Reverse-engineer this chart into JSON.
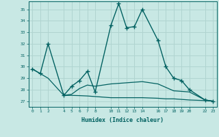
{
  "xlabel": "Humidex (Indice chaleur)",
  "ylabel": "",
  "background_color": "#c8e8e4",
  "grid_color": "#b0d4d0",
  "line_color": "#006060",
  "xlim": [
    -0.5,
    23.5
  ],
  "ylim": [
    26.5,
    35.7
  ],
  "xticks": [
    0,
    1,
    2,
    4,
    5,
    6,
    7,
    8,
    10,
    11,
    12,
    13,
    14,
    16,
    17,
    18,
    19,
    20,
    22,
    23
  ],
  "yticks": [
    27,
    28,
    29,
    30,
    31,
    32,
    33,
    34,
    35
  ],
  "series": [
    {
      "x": [
        0,
        1,
        2,
        4,
        5,
        6,
        7,
        8,
        10,
        11,
        12,
        13,
        14,
        16,
        17,
        18,
        19,
        20,
        22,
        23
      ],
      "y": [
        29.8,
        29.4,
        32.0,
        27.5,
        28.3,
        28.8,
        29.6,
        27.8,
        33.6,
        35.5,
        33.4,
        33.5,
        35.0,
        32.3,
        30.0,
        29.0,
        28.8,
        28.0,
        27.1,
        27.0
      ],
      "marker": "+",
      "markersize": 4,
      "linewidth": 1.0,
      "with_marker": true
    },
    {
      "x": [
        0,
        2,
        4,
        5,
        6,
        7,
        8,
        10,
        11,
        12,
        13,
        14,
        16,
        17,
        18,
        19,
        20,
        22,
        23
      ],
      "y": [
        29.8,
        29.0,
        27.5,
        27.6,
        28.1,
        28.4,
        28.3,
        28.5,
        28.55,
        28.6,
        28.65,
        28.7,
        28.5,
        28.2,
        27.9,
        27.85,
        27.8,
        27.1,
        27.0
      ],
      "marker": null,
      "markersize": 0,
      "linewidth": 0.9,
      "with_marker": false
    },
    {
      "x": [
        4,
        5,
        6,
        7,
        8,
        10,
        11,
        12,
        13,
        14,
        16,
        17,
        18,
        19,
        20,
        22,
        23
      ],
      "y": [
        27.5,
        27.5,
        27.48,
        27.45,
        27.4,
        27.3,
        27.3,
        27.3,
        27.3,
        27.3,
        27.25,
        27.2,
        27.2,
        27.15,
        27.1,
        27.05,
        27.0
      ],
      "marker": null,
      "markersize": 0,
      "linewidth": 0.9,
      "with_marker": false
    }
  ]
}
